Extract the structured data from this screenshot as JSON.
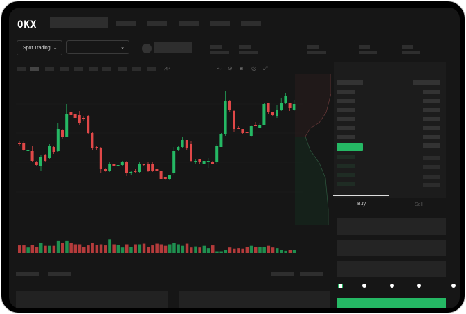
{
  "header": {
    "logo": "OKX",
    "market_selector": "Spot Trading"
  },
  "colors": {
    "up": "#25b864",
    "down": "#e04848",
    "background": "#161616"
  },
  "orderbook": {
    "icons": [
      "orderbook-both-icon",
      "orderbook-bids-icon",
      "orderbook-asks-icon"
    ]
  },
  "trade": {
    "tabs": [
      "Buy",
      "Sell"
    ],
    "active_tab": "Buy",
    "slider_level_percent": 0
  },
  "chart_data": {
    "type": "candlestick",
    "ylim": [
      0,
      100
    ],
    "grid": true,
    "candles": [
      [
        58,
        57,
        59,
        56
      ],
      [
        58,
        53,
        59,
        52
      ],
      [
        52,
        53,
        54,
        51
      ],
      [
        52,
        45,
        56,
        44
      ],
      [
        44,
        42,
        45,
        41
      ],
      [
        41,
        48,
        49,
        38
      ],
      [
        49,
        45,
        50,
        44
      ],
      [
        47,
        56,
        57,
        46
      ],
      [
        55,
        51,
        56,
        50
      ],
      [
        52,
        68,
        72,
        51
      ],
      [
        67,
        62,
        68,
        61
      ],
      [
        62,
        79,
        86,
        62
      ],
      [
        80,
        78,
        81,
        77
      ],
      [
        79,
        76,
        80,
        75
      ],
      [
        78,
        72,
        81,
        71
      ],
      [
        76,
        75,
        77,
        74
      ],
      [
        77,
        65,
        78,
        64
      ],
      [
        65,
        54,
        66,
        53
      ],
      [
        55,
        54,
        56,
        53
      ],
      [
        54,
        39,
        55,
        36
      ],
      [
        39,
        38,
        40,
        37
      ],
      [
        38,
        43,
        44,
        37
      ],
      [
        43,
        41,
        45,
        40
      ],
      [
        41,
        42,
        43,
        39
      ],
      [
        42,
        44,
        45,
        41
      ],
      [
        44,
        36,
        45,
        34
      ],
      [
        36,
        37,
        38,
        35
      ],
      [
        38,
        37,
        39,
        36
      ],
      [
        37,
        43,
        44,
        36
      ],
      [
        43,
        42,
        43,
        41
      ],
      [
        43,
        38,
        44,
        37
      ],
      [
        43,
        38,
        44,
        37
      ],
      [
        39,
        38,
        39,
        38
      ],
      [
        38,
        32,
        39,
        31
      ],
      [
        33,
        32,
        33,
        31
      ],
      [
        32,
        35,
        35,
        31
      ],
      [
        36,
        52,
        55,
        35
      ],
      [
        53,
        55,
        56,
        52
      ],
      [
        55,
        60,
        62,
        54
      ],
      [
        60,
        54,
        60,
        53
      ],
      [
        57,
        45,
        59,
        44
      ],
      [
        44,
        45,
        46,
        43
      ],
      [
        46,
        44,
        46,
        43
      ],
      [
        43,
        45,
        45,
        42
      ],
      [
        45,
        45,
        47,
        40
      ],
      [
        44,
        43,
        45,
        43
      ],
      [
        44,
        56,
        57,
        43
      ],
      [
        55,
        64,
        65,
        55
      ],
      [
        64,
        88,
        95,
        63
      ],
      [
        88,
        82,
        89,
        80
      ],
      [
        81,
        68,
        82,
        66
      ],
      [
        69,
        68,
        70,
        68
      ],
      [
        68,
        65,
        68,
        64
      ],
      [
        66,
        65,
        66,
        65
      ],
      [
        63,
        70,
        71,
        62
      ],
      [
        71,
        70,
        73,
        70
      ],
      [
        69,
        71,
        72,
        69
      ],
      [
        71,
        86,
        87,
        71
      ],
      [
        87,
        80,
        87,
        79
      ],
      [
        80,
        78,
        80,
        77
      ],
      [
        77,
        82,
        85,
        76
      ],
      [
        82,
        87,
        90,
        81
      ],
      [
        87,
        92,
        94,
        86
      ],
      [
        87,
        83,
        87,
        81
      ],
      [
        82,
        86,
        89,
        81
      ]
    ],
    "volume": [
      35,
      35,
      25,
      37,
      28,
      45,
      33,
      33,
      33,
      58,
      48,
      58,
      48,
      40,
      40,
      28,
      35,
      48,
      38,
      40,
      35,
      63,
      40,
      38,
      25,
      40,
      27,
      40,
      40,
      43,
      28,
      35,
      43,
      40,
      33,
      40,
      45,
      40,
      33,
      43,
      25,
      30,
      25,
      33,
      22,
      35,
      8,
      8,
      15,
      25,
      20,
      22,
      20,
      28,
      33,
      27,
      28,
      27,
      33,
      25,
      22,
      13,
      10,
      15,
      14
    ]
  }
}
